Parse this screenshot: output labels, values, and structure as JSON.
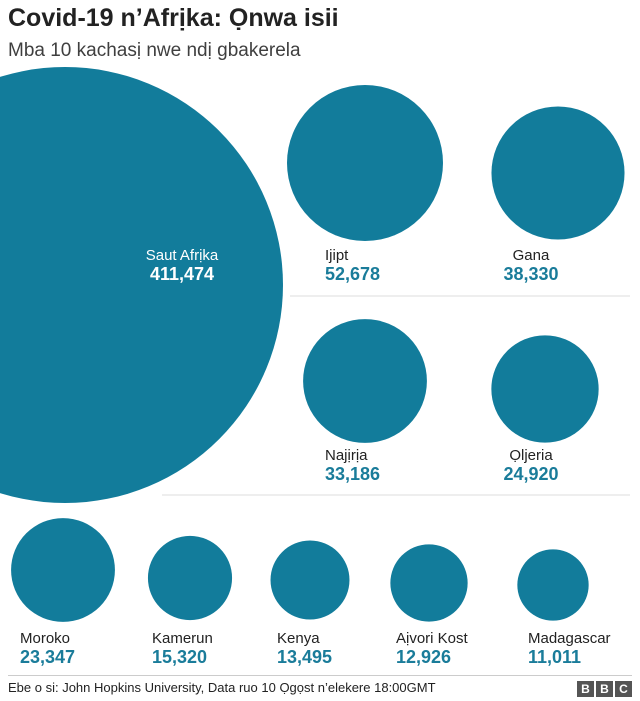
{
  "title": "Covid-19 n’Afrịka: Ọnwa isii",
  "subtitle": "Mba 10 kachasị nwe ndị gbakerela",
  "source": "Ebe o si: John Hopkins University, Data ruo 10 Ọgọst n’elekere 18:00GMT",
  "logo_letters": [
    "B",
    "B",
    "C"
  ],
  "colors": {
    "bubble": "#127c9b",
    "value": "#1a7c9a",
    "divider": "#dddddd",
    "label_dark": "#222222",
    "label_light": "#ffffff"
  },
  "chart_data": {
    "type": "bubble",
    "title": "Covid-19 n’Afrịka: Ọnwa isii",
    "subtitle": "Mba 10 kachasị nwe ndị gbakerela",
    "categories": [
      "Saut Afrịka",
      "Ijipt",
      "Gana",
      "Najịrịa",
      "Ọljeria",
      "Moroko",
      "Kamerun",
      "Kenya",
      "Aịvori Kost",
      "Madagascar"
    ],
    "values": [
      411474,
      52678,
      38330,
      33186,
      24920,
      23347,
      15320,
      13495,
      12926,
      11011
    ],
    "value_labels": [
      "411,474",
      "52,678",
      "38,330",
      "33,186",
      "24,920",
      "23,347",
      "15,320",
      "13,495",
      "12,926",
      "11,011"
    ]
  }
}
